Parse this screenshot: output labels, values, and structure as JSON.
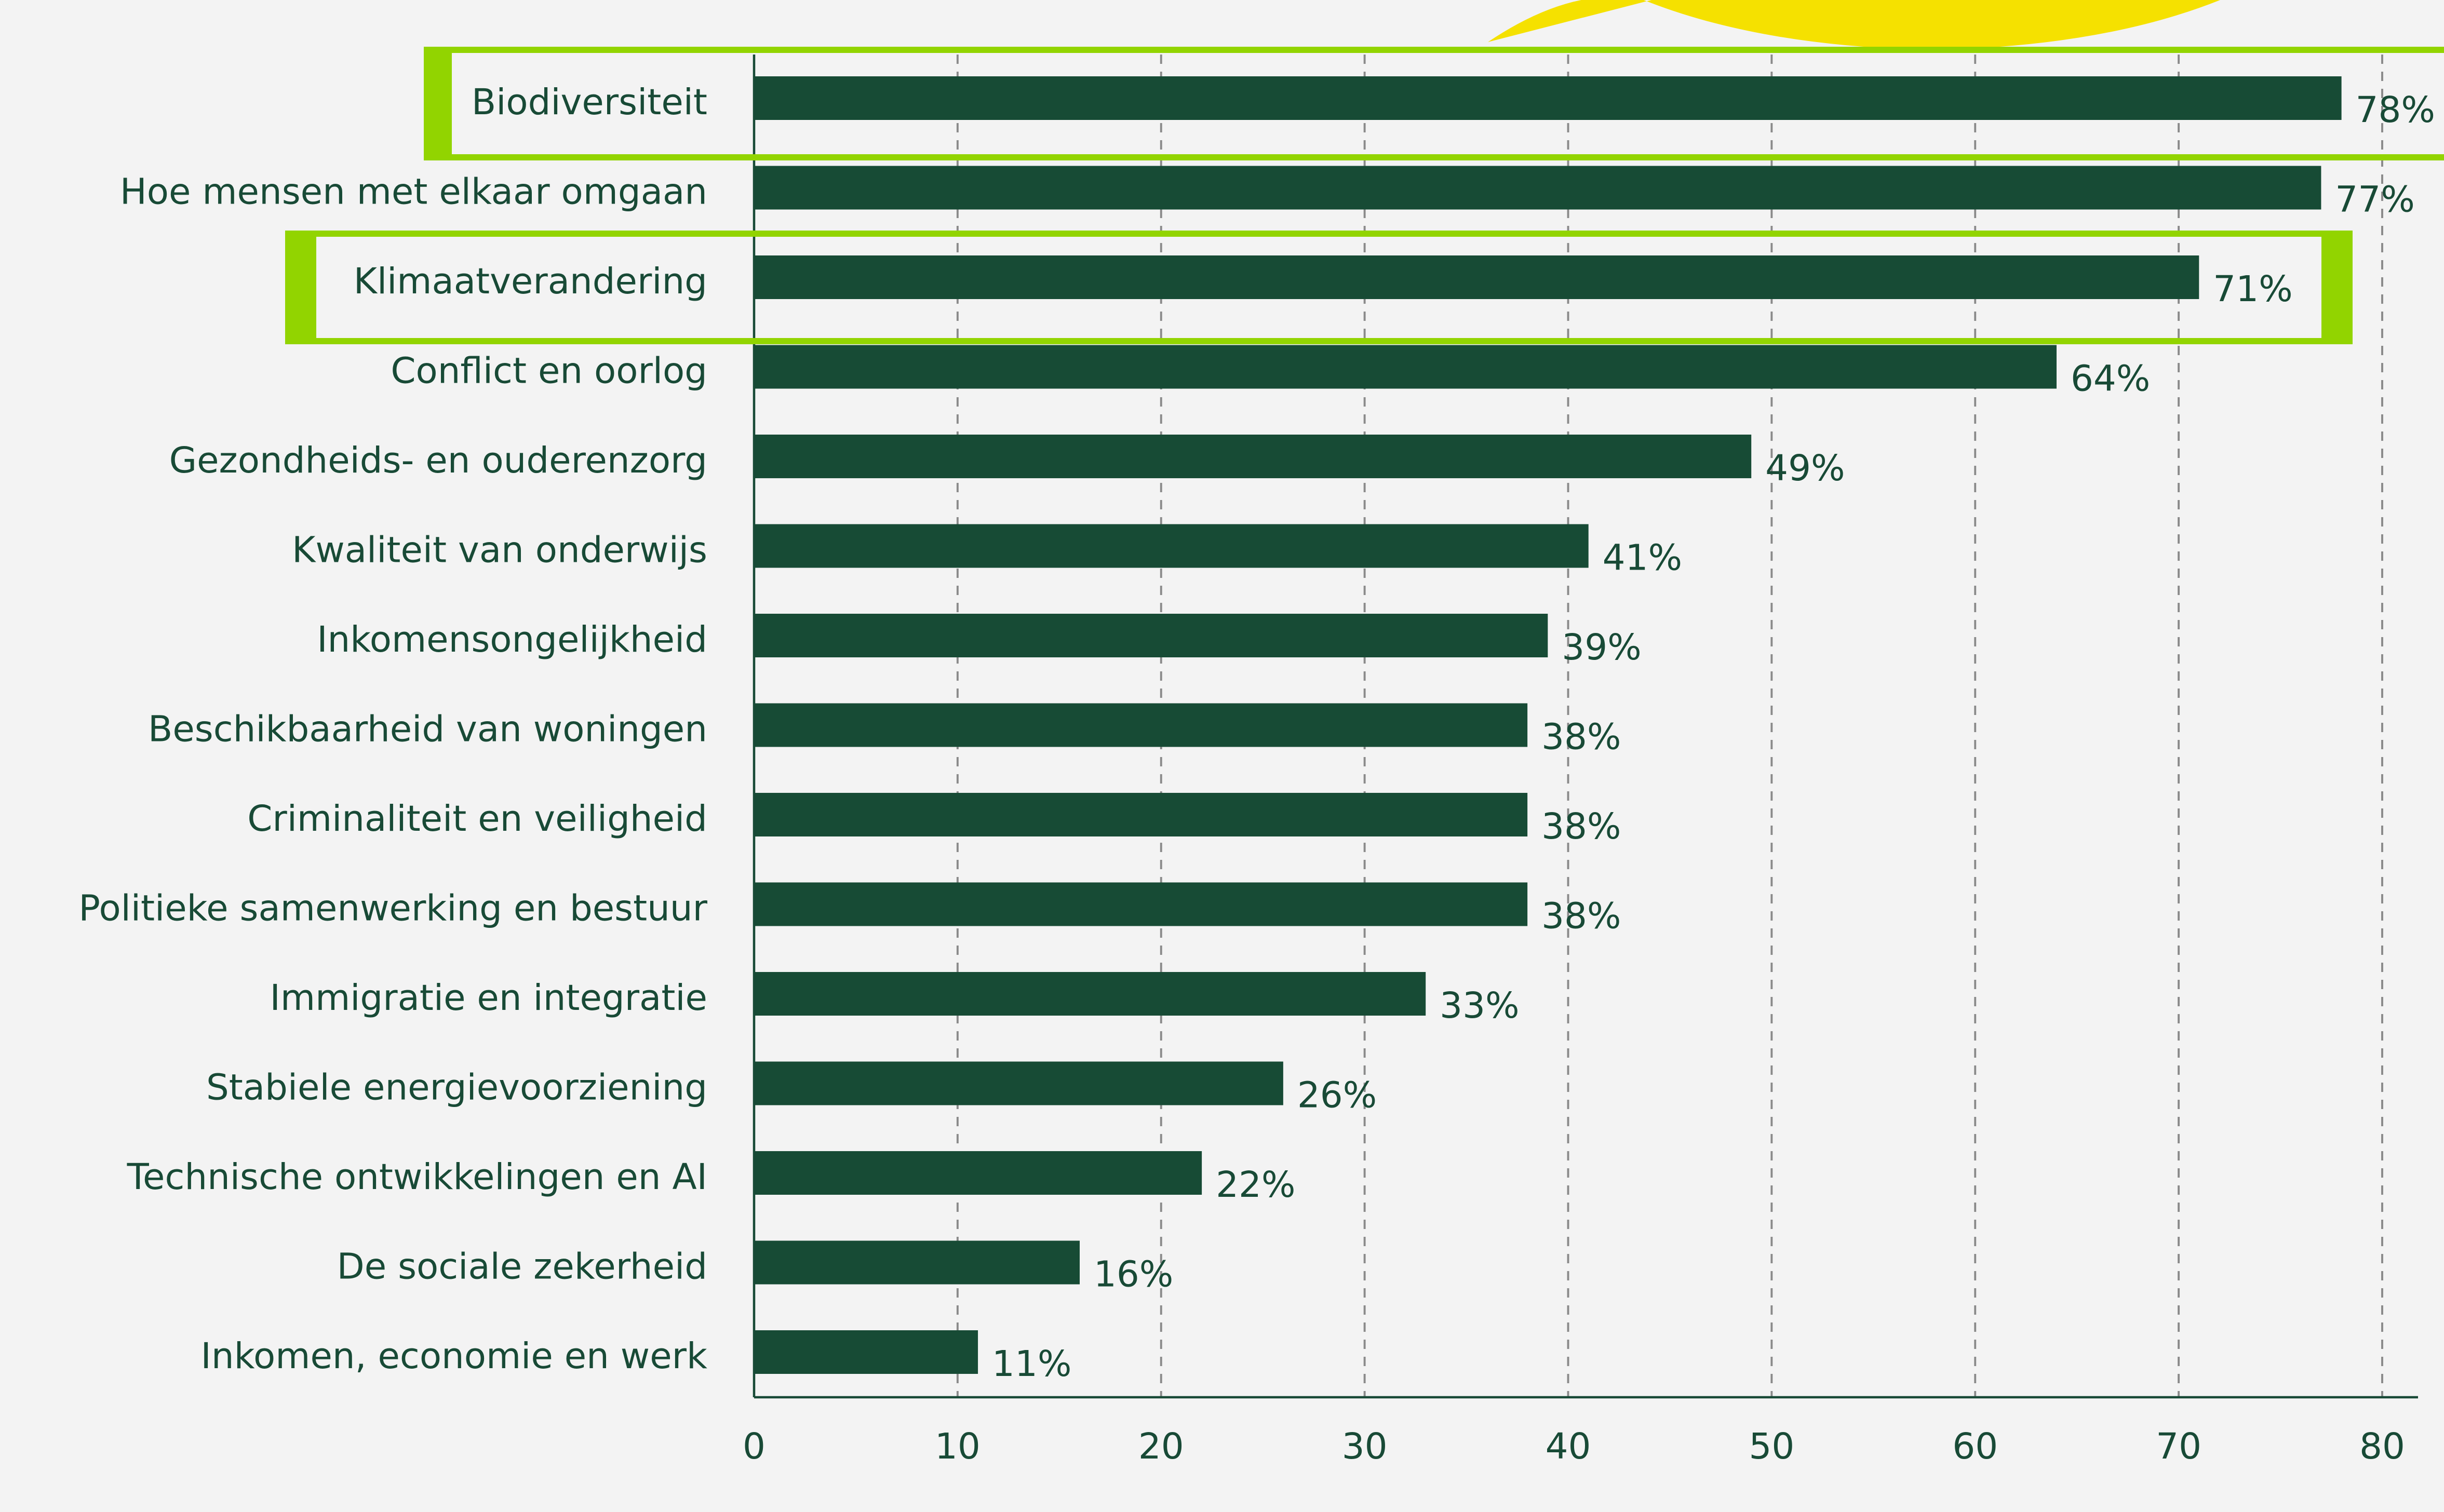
{
  "chart_data": {
    "type": "bar",
    "orientation": "horizontal",
    "categories": [
      "Biodiversiteit",
      "Hoe mensen met elkaar omgaan",
      "Klimaatverandering",
      "Conflict en oorlog",
      "Gezondheids- en ouderenzorg",
      "Kwaliteit van onderwijs",
      "Inkomensongelijkheid",
      "Beschikbaarheid van woningen",
      "Criminaliteit en veiligheid",
      "Politieke samenwerking en bestuur",
      "Immigratie en integratie",
      "Stabiele energievoorziening",
      "Technische ontwikkelingen en AI",
      "De sociale zekerheid",
      "Inkomen, economie en werk"
    ],
    "values": [
      78,
      77,
      71,
      64,
      49,
      41,
      39,
      38,
      38,
      38,
      33,
      26,
      22,
      16,
      11
    ],
    "value_labels": [
      "78%",
      "77%",
      "71%",
      "64%",
      "49%",
      "41%",
      "39%",
      "38%",
      "38%",
      "38%",
      "33%",
      "26%",
      "22%",
      "16%",
      "11%"
    ],
    "color": "#174b35",
    "xlim": [
      0,
      82
    ],
    "xticks": [
      0,
      10,
      20,
      30,
      40,
      50,
      60,
      70,
      80
    ],
    "grid": true
  }
}
